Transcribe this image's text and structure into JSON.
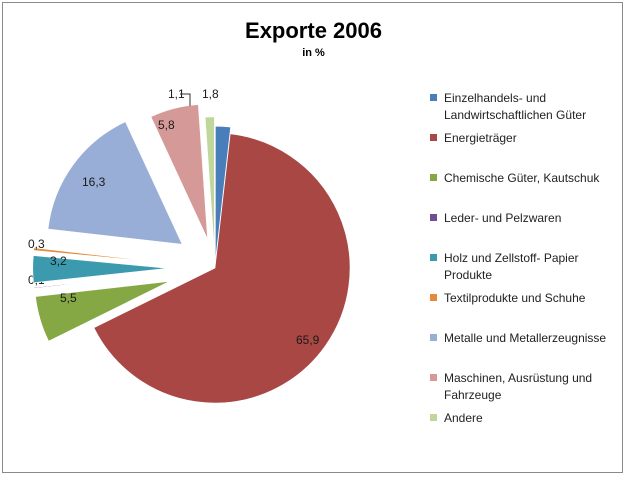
{
  "title": "Exporte 2006",
  "subtitle": "in %",
  "chart_data": {
    "type": "pie",
    "title": "Exporte 2006",
    "subtitle": "in %",
    "exploded": true,
    "legend_position": "right",
    "slices": [
      {
        "label": "Einzelhandels- und Landwirtschaftlichen Güter",
        "value": 1.8,
        "value_label": "1,8",
        "color": "#4a7ebb"
      },
      {
        "label": "Energieträger",
        "value": 65.9,
        "value_label": "65,9",
        "color": "#a84744"
      },
      {
        "label": "Chemische Güter, Kautschuk",
        "value": 5.5,
        "value_label": "5,5",
        "color": "#86a844"
      },
      {
        "label": "Leder- und Pelzwaren",
        "value": 0.1,
        "value_label": "0,1",
        "color": "#6f4f91"
      },
      {
        "label": "Holz und Zellstoff- Papier Produkte",
        "value": 3.2,
        "value_label": "3,2",
        "color": "#3b9aae"
      },
      {
        "label": "Textilprodukte und Schuhe",
        "value": 0.3,
        "value_label": "0,3",
        "color": "#e58a3a"
      },
      {
        "label": "Metalle und Metallerzeugnisse",
        "value": 16.3,
        "value_label": "16,3",
        "color": "#98aed6"
      },
      {
        "label": "Maschinen, Ausrüstung und Fahrzeuge",
        "value": 5.8,
        "value_label": "5,8",
        "color": "#d59a98"
      },
      {
        "label": "Andere",
        "value": 1.1,
        "value_label": "1,1",
        "color": "#c0d79c"
      }
    ]
  }
}
